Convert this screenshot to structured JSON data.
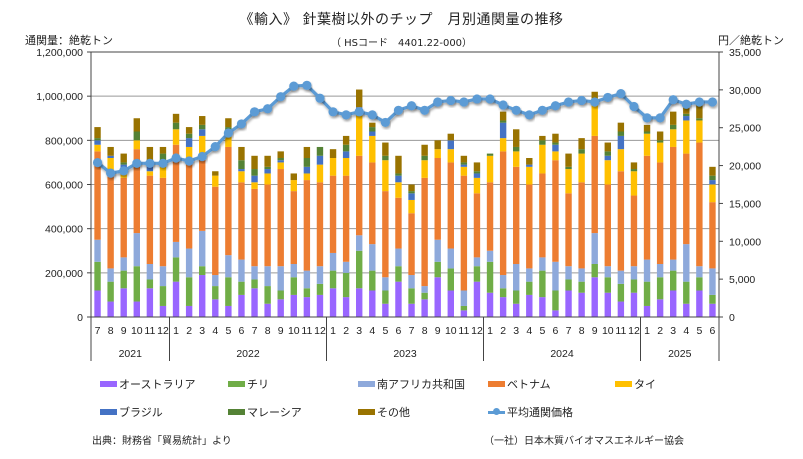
{
  "chart_data": {
    "type": "bar",
    "subtype": "stacked-bar-with-line",
    "title": "《輸入》 針葉樹以外のチップ　月別通関量の推移",
    "subtitle": "（ HSコード　4401.22-000）",
    "ylabel_left": "通関量：絶乾トン",
    "ylabel_right": "円／絶乾トン",
    "ylim_left": [
      0,
      1200000
    ],
    "ylim_right": [
      0,
      35000
    ],
    "yticks_left": [
      "0",
      "200,000",
      "400,000",
      "600,000",
      "800,000",
      "1,000,000",
      "1,200,000"
    ],
    "yticks_right": [
      "0",
      "5,000",
      "10,000",
      "15,000",
      "20,000",
      "25,000",
      "30,000",
      "35,000"
    ],
    "grid": true,
    "legend_position": "bottom",
    "years": [
      {
        "label": "2021",
        "months": 6
      },
      {
        "label": "2022",
        "months": 12
      },
      {
        "label": "2023",
        "months": 12
      },
      {
        "label": "2024",
        "months": 12
      },
      {
        "label": "2025",
        "months": 6
      }
    ],
    "categories": [
      "7",
      "8",
      "9",
      "10",
      "11",
      "12",
      "1",
      "2",
      "3",
      "4",
      "5",
      "6",
      "7",
      "8",
      "9",
      "10",
      "11",
      "12",
      "1",
      "2",
      "3",
      "4",
      "5",
      "6",
      "7",
      "8",
      "9",
      "10",
      "11",
      "12",
      "1",
      "2",
      "3",
      "4",
      "5",
      "6",
      "7",
      "8",
      "9",
      "10",
      "11",
      "12",
      "1",
      "2",
      "3",
      "4",
      "5",
      "6"
    ],
    "series": [
      {
        "name": "オーストラリア",
        "color": "#9966FF",
        "values": [
          120000,
          70000,
          130000,
          70000,
          130000,
          50000,
          160000,
          50000,
          190000,
          80000,
          50000,
          100000,
          130000,
          60000,
          80000,
          100000,
          90000,
          100000,
          130000,
          90000,
          130000,
          120000,
          60000,
          160000,
          60000,
          80000,
          180000,
          120000,
          30000,
          160000,
          110000,
          90000,
          60000,
          100000,
          90000,
          30000,
          120000,
          110000,
          180000,
          110000,
          70000,
          110000,
          50000,
          80000,
          120000,
          60000,
          120000,
          60000
        ]
      },
      {
        "name": "チリ",
        "color": "#70AD47",
        "values": [
          130000,
          90000,
          80000,
          160000,
          40000,
          90000,
          110000,
          130000,
          40000,
          60000,
          130000,
          60000,
          40000,
          80000,
          40000,
          80000,
          40000,
          50000,
          80000,
          110000,
          170000,
          90000,
          60000,
          70000,
          70000,
          30000,
          70000,
          100000,
          20000,
          70000,
          140000,
          40000,
          60000,
          60000,
          120000,
          90000,
          50000,
          50000,
          60000,
          70000,
          80000,
          60000,
          110000,
          100000,
          90000,
          100000,
          60000,
          40000
        ]
      },
      {
        "name": "南アフリカ共和国",
        "color": "#8EA9DB",
        "values": [
          100000,
          60000,
          60000,
          150000,
          70000,
          90000,
          70000,
          130000,
          160000,
          50000,
          100000,
          100000,
          60000,
          90000,
          110000,
          60000,
          80000,
          80000,
          80000,
          50000,
          70000,
          120000,
          60000,
          80000,
          60000,
          30000,
          100000,
          90000,
          70000,
          40000,
          50000,
          60000,
          120000,
          60000,
          60000,
          130000,
          60000,
          60000,
          140000,
          50000,
          60000,
          60000,
          100000,
          60000,
          50000,
          170000,
          50000,
          120000
        ]
      },
      {
        "name": "ベトナム",
        "color": "#ED7D31",
        "values": [
          400000,
          430000,
          360000,
          380000,
          400000,
          400000,
          440000,
          400000,
          340000,
          400000,
          490000,
          350000,
          350000,
          370000,
          440000,
          330000,
          410000,
          380000,
          350000,
          390000,
          360000,
          370000,
          390000,
          230000,
          280000,
          490000,
          370000,
          390000,
          520000,
          290000,
          310000,
          560000,
          440000,
          380000,
          380000,
          460000,
          330000,
          390000,
          440000,
          370000,
          450000,
          320000,
          470000,
          460000,
          510000,
          410000,
          560000,
          300000
        ]
      },
      {
        "name": "タイ",
        "color": "#FFC000",
        "values": [
          30000,
          70000,
          30000,
          40000,
          20000,
          50000,
          70000,
          60000,
          90000,
          50000,
          60000,
          50000,
          30000,
          50000,
          30000,
          50000,
          30000,
          80000,
          80000,
          80000,
          200000,
          120000,
          140000,
          70000,
          60000,
          80000,
          40000,
          60000,
          40000,
          70000,
          120000,
          60000,
          70000,
          80000,
          130000,
          40000,
          110000,
          130000,
          140000,
          110000,
          100000,
          110000,
          100000,
          90000,
          80000,
          150000,
          100000,
          80000
        ]
      },
      {
        "name": "ブラジル",
        "color": "#4472C4",
        "values": [
          20000,
          10000,
          30000,
          0,
          30000,
          20000,
          0,
          40000,
          30000,
          0,
          10000,
          10000,
          30000,
          20000,
          10000,
          0,
          30000,
          40000,
          0,
          30000,
          20000,
          20000,
          0,
          30000,
          30000,
          0,
          0,
          40000,
          10000,
          20000,
          0,
          70000,
          0,
          10000,
          0,
          30000,
          0,
          0,
          20000,
          20000,
          60000,
          0,
          0,
          0,
          0,
          20000,
          0,
          20000
        ]
      },
      {
        "name": "マレーシア",
        "color": "#548235",
        "values": [
          10000,
          0,
          10000,
          40000,
          20000,
          40000,
          30000,
          20000,
          20000,
          0,
          20000,
          40000,
          30000,
          10000,
          10000,
          0,
          40000,
          40000,
          0,
          30000,
          0,
          20000,
          20000,
          10000,
          10000,
          20000,
          0,
          0,
          10000,
          10000,
          10000,
          10000,
          20000,
          0,
          20000,
          10000,
          10000,
          20000,
          10000,
          20000,
          20000,
          10000,
          10000,
          10000,
          20000,
          10000,
          10000,
          20000
        ]
      },
      {
        "name": "その他",
        "color": "#997300",
        "values": [
          50000,
          40000,
          40000,
          60000,
          60000,
          30000,
          40000,
          30000,
          40000,
          20000,
          40000,
          60000,
          60000,
          50000,
          30000,
          30000,
          50000,
          0,
          40000,
          40000,
          80000,
          20000,
          60000,
          80000,
          30000,
          50000,
          40000,
          30000,
          30000,
          40000,
          0,
          40000,
          80000,
          30000,
          20000,
          40000,
          60000,
          50000,
          30000,
          40000,
          40000,
          30000,
          30000,
          40000,
          60000,
          30000,
          60000,
          40000
        ]
      }
    ],
    "line_series": {
      "name": "平均通関価格",
      "color": "#5B9BD5",
      "axis": "right",
      "values": [
        20400,
        19000,
        19300,
        20300,
        20300,
        20300,
        21000,
        20600,
        21200,
        22500,
        24300,
        25500,
        27100,
        27500,
        29100,
        30500,
        30600,
        28900,
        27100,
        26700,
        27100,
        26700,
        25700,
        27300,
        27900,
        27300,
        28400,
        28600,
        28400,
        28800,
        28800,
        28000,
        27300,
        26700,
        27300,
        27900,
        28400,
        28600,
        28400,
        29000,
        29500,
        27800,
        26300,
        26300,
        28700,
        28100,
        28400,
        28400
      ]
    },
    "legend": [
      "オーストラリア",
      "チリ",
      "南アフリカ共和国",
      "ベトナム",
      "タイ",
      "ブラジル",
      "マレーシア",
      "その他",
      "平均通関価格"
    ]
  },
  "footer": {
    "source": "出典：財務省「貿易統計」より",
    "organization": "（一社）日本木質バイオマスエネルギー協会"
  }
}
